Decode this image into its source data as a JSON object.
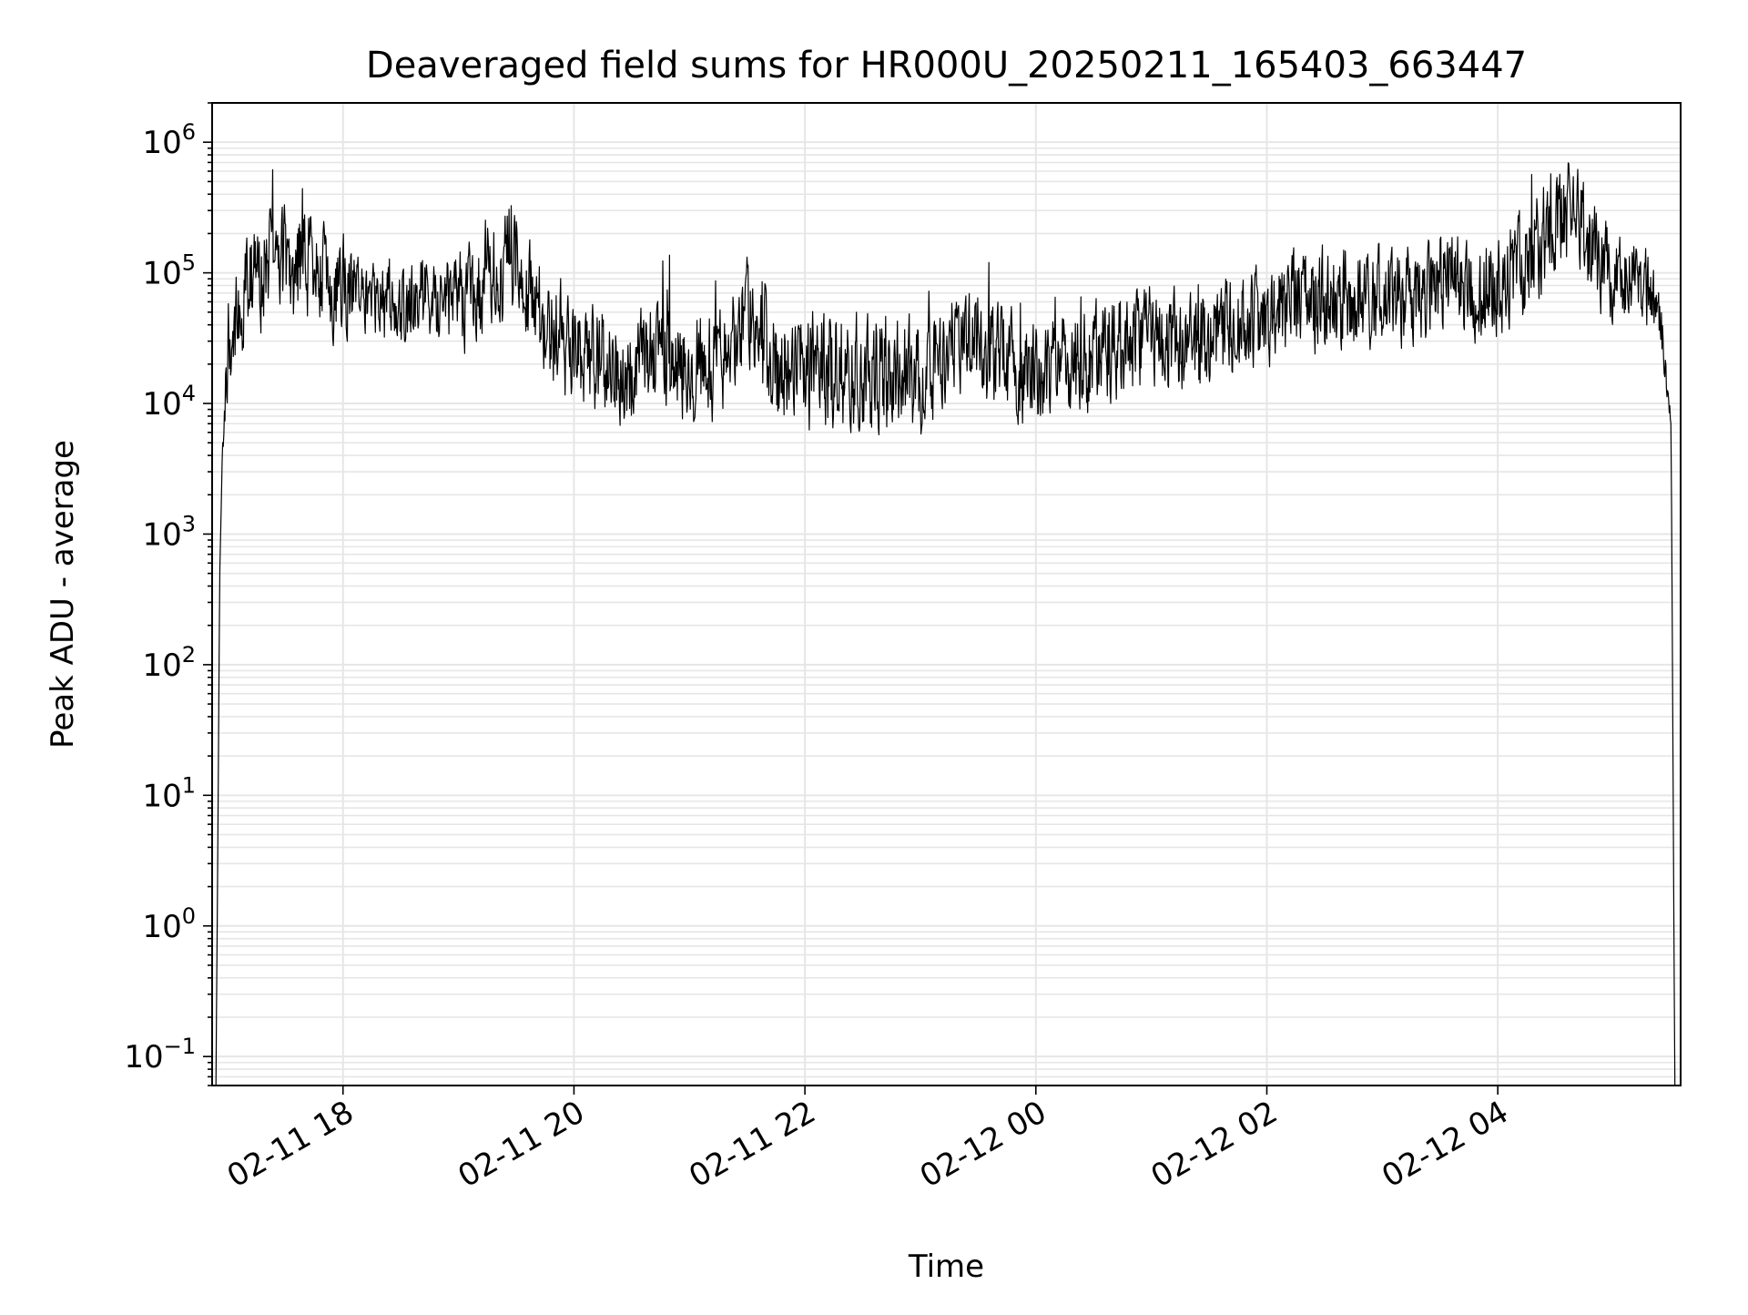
{
  "chart_data": {
    "type": "line",
    "title": "Deaveraged field sums for HR000U_20250211_165403_663447",
    "xlabel": "Time",
    "ylabel": "Peak ADU - average",
    "yscale": "log",
    "ylim": [
      0.06,
      2000000
    ],
    "xlim": [
      "2025-02-11 16:52",
      "2025-02-12 05:35"
    ],
    "grid": true,
    "line_color": "#000000",
    "grid_color": "#e6e6e6",
    "x_ticks": [
      {
        "value": "2025-02-11 18:00",
        "label": "02-11 18"
      },
      {
        "value": "2025-02-11 20:00",
        "label": "02-11 20"
      },
      {
        "value": "2025-02-11 22:00",
        "label": "02-11 22"
      },
      {
        "value": "2025-02-12 00:00",
        "label": "02-12 00"
      },
      {
        "value": "2025-02-12 02:00",
        "label": "02-12 02"
      },
      {
        "value": "2025-02-12 04:00",
        "label": "02-12 04"
      }
    ],
    "y_ticks": [
      {
        "value": 0.1,
        "base": "10",
        "exp": "−1"
      },
      {
        "value": 1,
        "base": "10",
        "exp": "0"
      },
      {
        "value": 10,
        "base": "10",
        "exp": "1"
      },
      {
        "value": 100,
        "base": "10",
        "exp": "2"
      },
      {
        "value": 1000,
        "base": "10",
        "exp": "3"
      },
      {
        "value": 10000,
        "base": "10",
        "exp": "4"
      },
      {
        "value": 100000,
        "base": "10",
        "exp": "5"
      },
      {
        "value": 1000000,
        "base": "10",
        "exp": "6"
      }
    ],
    "series": [
      {
        "x": [
          "2025-02-11 16:54",
          "2025-02-11 16:56",
          "2025-02-11 16:58",
          "2025-02-11 17:00",
          "2025-02-11 17:04",
          "2025-02-11 17:08",
          "2025-02-11 17:12",
          "2025-02-11 17:18",
          "2025-02-11 17:24",
          "2025-02-11 17:30",
          "2025-02-11 17:36",
          "2025-02-11 17:42",
          "2025-02-11 17:48",
          "2025-02-11 17:54",
          "2025-02-11 18:00",
          "2025-02-11 18:10",
          "2025-02-11 18:20",
          "2025-02-11 18:30",
          "2025-02-11 18:40",
          "2025-02-11 18:50",
          "2025-02-11 19:00",
          "2025-02-11 19:10",
          "2025-02-11 19:20",
          "2025-02-11 19:30",
          "2025-02-11 19:40",
          "2025-02-11 19:50",
          "2025-02-11 20:00",
          "2025-02-11 20:15",
          "2025-02-11 20:30",
          "2025-02-11 20:45",
          "2025-02-11 21:00",
          "2025-02-11 21:15",
          "2025-02-11 21:30",
          "2025-02-11 21:45",
          "2025-02-11 22:00",
          "2025-02-11 22:15",
          "2025-02-11 22:30",
          "2025-02-11 22:45",
          "2025-02-11 23:00",
          "2025-02-11 23:15",
          "2025-02-11 23:30",
          "2025-02-11 23:45",
          "2025-02-12 00:00",
          "2025-02-12 00:15",
          "2025-02-12 00:30",
          "2025-02-12 00:45",
          "2025-02-12 01:00",
          "2025-02-12 01:15",
          "2025-02-12 01:30",
          "2025-02-12 01:45",
          "2025-02-12 02:00",
          "2025-02-12 02:15",
          "2025-02-12 02:30",
          "2025-02-12 02:45",
          "2025-02-12 03:00",
          "2025-02-12 03:15",
          "2025-02-12 03:30",
          "2025-02-12 03:45",
          "2025-02-12 04:00",
          "2025-02-12 04:10",
          "2025-02-12 04:20",
          "2025-02-12 04:30",
          "2025-02-12 04:40",
          "2025-02-12 04:50",
          "2025-02-12 05:00",
          "2025-02-12 05:10",
          "2025-02-12 05:20",
          "2025-02-12 05:26",
          "2025-02-12 05:30",
          "2025-02-12 05:32"
        ],
        "values": [
          0.06,
          500,
          8000,
          20000,
          40000,
          60000,
          80000,
          90000,
          150000,
          120000,
          110000,
          120000,
          100000,
          70000,
          80000,
          55000,
          50000,
          55000,
          60000,
          55000,
          60000,
          70000,
          120000,
          150000,
          50000,
          35000,
          25000,
          20000,
          18000,
          22000,
          20000,
          18000,
          55000,
          20000,
          18000,
          20000,
          16000,
          18000,
          14000,
          30000,
          28000,
          22000,
          16000,
          20000,
          22000,
          28000,
          30000,
          28000,
          30000,
          40000,
          50000,
          60000,
          70000,
          60000,
          65000,
          70000,
          95000,
          80000,
          75000,
          100000,
          150000,
          280000,
          300000,
          130000,
          90000,
          85000,
          70000,
          30000,
          8000,
          0.06
        ],
        "spread": [
          0.0,
          0.1,
          0.3,
          0.4,
          0.5,
          0.5,
          0.55,
          0.55,
          0.6,
          0.6,
          0.6,
          0.55,
          0.5,
          0.5,
          0.5,
          0.45,
          0.45,
          0.45,
          0.45,
          0.45,
          0.5,
          0.55,
          0.65,
          0.6,
          0.55,
          0.55,
          0.55,
          0.55,
          0.55,
          0.55,
          0.55,
          0.55,
          0.5,
          0.6,
          0.6,
          0.6,
          0.6,
          0.6,
          0.6,
          0.55,
          0.55,
          0.55,
          0.55,
          0.55,
          0.55,
          0.55,
          0.55,
          0.5,
          0.5,
          0.5,
          0.5,
          0.5,
          0.55,
          0.5,
          0.5,
          0.5,
          0.5,
          0.5,
          0.5,
          0.5,
          0.55,
          0.55,
          0.5,
          0.5,
          0.45,
          0.45,
          0.4,
          0.3,
          0.1,
          0.0
        ]
      }
    ]
  }
}
